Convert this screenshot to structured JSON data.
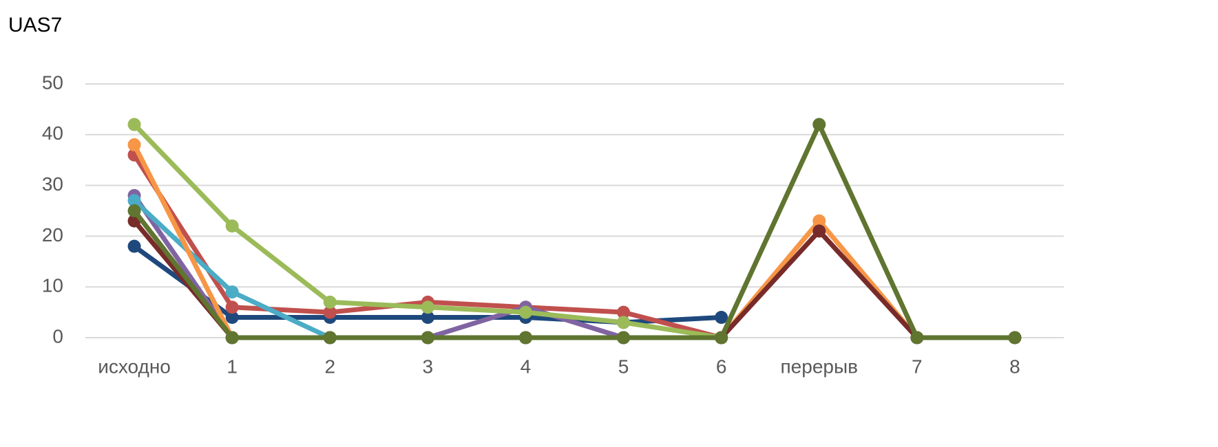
{
  "chart_data": {
    "type": "line",
    "title": "UAS7",
    "categories": [
      "исходно",
      "1",
      "2",
      "3",
      "4",
      "5",
      "6",
      "перерыв",
      "7",
      "8"
    ],
    "series": [
      {
        "color": "#1f497d",
        "values": [
          18,
          4,
          4,
          4,
          4,
          3,
          4,
          null,
          null,
          null
        ]
      },
      {
        "color": "#c0504d",
        "values": [
          36,
          6,
          5,
          7,
          6,
          5,
          0,
          null,
          null,
          null
        ]
      },
      {
        "color": "#8064a2",
        "values": [
          28,
          0,
          0,
          0,
          6,
          0,
          0,
          null,
          null,
          null
        ]
      },
      {
        "color": "#4bacc6",
        "values": [
          27,
          9,
          0,
          0,
          0,
          0,
          0,
          null,
          null,
          null
        ]
      },
      {
        "color": "#9bbb59",
        "values": [
          42,
          22,
          7,
          6,
          5,
          3,
          0,
          null,
          null,
          null
        ]
      },
      {
        "color": "#f79646",
        "values": [
          38,
          0,
          0,
          0,
          0,
          0,
          0,
          23,
          0,
          0
        ]
      },
      {
        "color": "#772c2a",
        "values": [
          23,
          0,
          0,
          0,
          0,
          0,
          0,
          21,
          0,
          0
        ]
      },
      {
        "color": "#5f7530",
        "values": [
          25,
          0,
          0,
          0,
          0,
          0,
          0,
          42,
          0,
          0
        ]
      }
    ],
    "ylim": [
      0,
      50
    ],
    "yticks": [
      0,
      10,
      20,
      30,
      40,
      50
    ],
    "grid": true
  }
}
